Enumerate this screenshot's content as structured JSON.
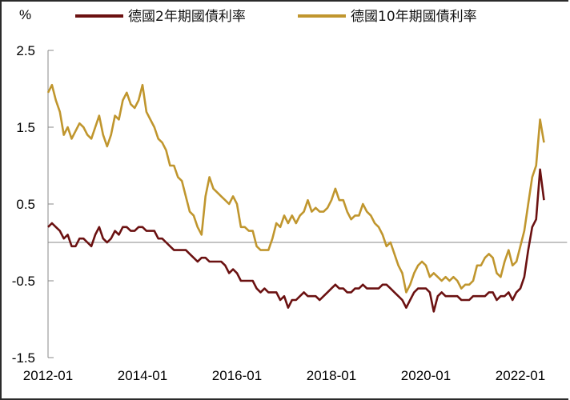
{
  "chart_data": {
    "type": "line",
    "title": "",
    "ylabel": "%",
    "xlabel": "",
    "ylim": [
      -1.5,
      2.5
    ],
    "yticks": [
      "2.5",
      "1.5",
      "0.5",
      "-0.5",
      "-1.5"
    ],
    "ytick_values": [
      2.5,
      1.5,
      0.5,
      -0.5,
      -1.5
    ],
    "xticks": [
      "2012-01",
      "2014-01",
      "2016-01",
      "2018-01",
      "2020-01",
      "2022-01"
    ],
    "xtick_years": [
      2012,
      2014,
      2016,
      2018,
      2020,
      2022
    ],
    "xlim_years": [
      2012.0,
      2022.65
    ],
    "grid": false,
    "legend_position": "top",
    "frequency": "monthly",
    "start": "2012-01",
    "series": [
      {
        "name": "德國2年期國債利率",
        "color": "#6b1111",
        "values": [
          0.2,
          0.25,
          0.2,
          0.15,
          0.05,
          0.1,
          -0.05,
          -0.05,
          0.05,
          0.05,
          0.0,
          -0.05,
          0.1,
          0.2,
          0.05,
          0.0,
          0.05,
          0.15,
          0.1,
          0.2,
          0.2,
          0.15,
          0.15,
          0.2,
          0.2,
          0.15,
          0.15,
          0.15,
          0.05,
          0.05,
          0.0,
          -0.05,
          -0.1,
          -0.1,
          -0.1,
          -0.1,
          -0.15,
          -0.2,
          -0.25,
          -0.2,
          -0.2,
          -0.25,
          -0.25,
          -0.25,
          -0.25,
          -0.3,
          -0.4,
          -0.35,
          -0.4,
          -0.5,
          -0.5,
          -0.5,
          -0.5,
          -0.6,
          -0.65,
          -0.6,
          -0.65,
          -0.65,
          -0.65,
          -0.75,
          -0.7,
          -0.85,
          -0.75,
          -0.75,
          -0.7,
          -0.65,
          -0.7,
          -0.7,
          -0.7,
          -0.75,
          -0.7,
          -0.65,
          -0.6,
          -0.55,
          -0.6,
          -0.6,
          -0.65,
          -0.65,
          -0.6,
          -0.6,
          -0.55,
          -0.6,
          -0.6,
          -0.6,
          -0.6,
          -0.55,
          -0.55,
          -0.6,
          -0.65,
          -0.7,
          -0.75,
          -0.85,
          -0.75,
          -0.65,
          -0.6,
          -0.6,
          -0.6,
          -0.65,
          -0.9,
          -0.7,
          -0.65,
          -0.7,
          -0.7,
          -0.7,
          -0.7,
          -0.75,
          -0.75,
          -0.75,
          -0.7,
          -0.7,
          -0.7,
          -0.7,
          -0.65,
          -0.65,
          -0.75,
          -0.7,
          -0.7,
          -0.65,
          -0.75,
          -0.65,
          -0.6,
          -0.45,
          -0.1,
          0.2,
          0.3,
          0.95,
          0.55
        ]
      },
      {
        "name": "德國10年期國債利率",
        "color": "#c0962e",
        "values": [
          1.95,
          2.05,
          1.85,
          1.7,
          1.4,
          1.5,
          1.35,
          1.45,
          1.55,
          1.5,
          1.4,
          1.35,
          1.5,
          1.65,
          1.4,
          1.25,
          1.4,
          1.65,
          1.6,
          1.85,
          1.95,
          1.8,
          1.75,
          1.85,
          2.05,
          1.7,
          1.6,
          1.5,
          1.35,
          1.3,
          1.2,
          1.0,
          1.0,
          0.85,
          0.8,
          0.6,
          0.4,
          0.35,
          0.2,
          0.1,
          0.6,
          0.85,
          0.7,
          0.65,
          0.6,
          0.55,
          0.5,
          0.6,
          0.5,
          0.2,
          0.2,
          0.15,
          0.15,
          -0.05,
          -0.1,
          -0.1,
          -0.1,
          0.05,
          0.25,
          0.2,
          0.35,
          0.25,
          0.35,
          0.25,
          0.35,
          0.4,
          0.55,
          0.4,
          0.45,
          0.4,
          0.4,
          0.45,
          0.55,
          0.7,
          0.55,
          0.55,
          0.4,
          0.3,
          0.35,
          0.35,
          0.5,
          0.4,
          0.35,
          0.25,
          0.2,
          0.1,
          -0.05,
          0.0,
          -0.15,
          -0.3,
          -0.4,
          -0.65,
          -0.55,
          -0.4,
          -0.3,
          -0.25,
          -0.3,
          -0.45,
          -0.4,
          -0.45,
          -0.5,
          -0.45,
          -0.5,
          -0.45,
          -0.5,
          -0.6,
          -0.55,
          -0.55,
          -0.5,
          -0.3,
          -0.3,
          -0.2,
          -0.15,
          -0.2,
          -0.4,
          -0.45,
          -0.25,
          -0.1,
          -0.3,
          -0.25,
          -0.05,
          0.15,
          0.5,
          0.85,
          1.0,
          1.6,
          1.3
        ]
      }
    ]
  }
}
